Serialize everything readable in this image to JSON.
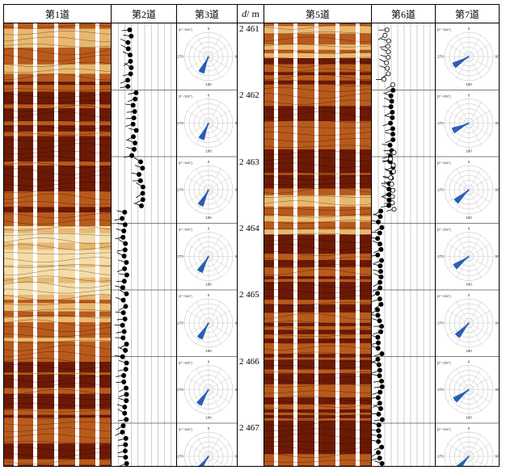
{
  "tracks": {
    "t1": "第1道",
    "t2": "第2道",
    "t3": "第3道",
    "depth_unit_var": "d",
    "depth_unit_sep": " / m",
    "t5": "第5道",
    "t6": "第6道",
    "t7": "第7道"
  },
  "depths": [
    "2 461",
    "2 462",
    "2 463",
    "2 464",
    "2 465",
    "2 466",
    "2 467"
  ],
  "rose_labels": {
    "north": "0",
    "east": "90",
    "south": "180",
    "west": "270",
    "corner": "[0°~360°]"
  },
  "colors": {
    "dark_band": "#6b1a05",
    "mid_band": "#b85a1c",
    "light_band": "#e8b870",
    "pale_band": "#f3dcaa",
    "arrow": "#2a5fb5"
  },
  "icons": {
    "tadpole": "filled-circle-with-tail",
    "rose": "polar-rose-diagram"
  }
}
